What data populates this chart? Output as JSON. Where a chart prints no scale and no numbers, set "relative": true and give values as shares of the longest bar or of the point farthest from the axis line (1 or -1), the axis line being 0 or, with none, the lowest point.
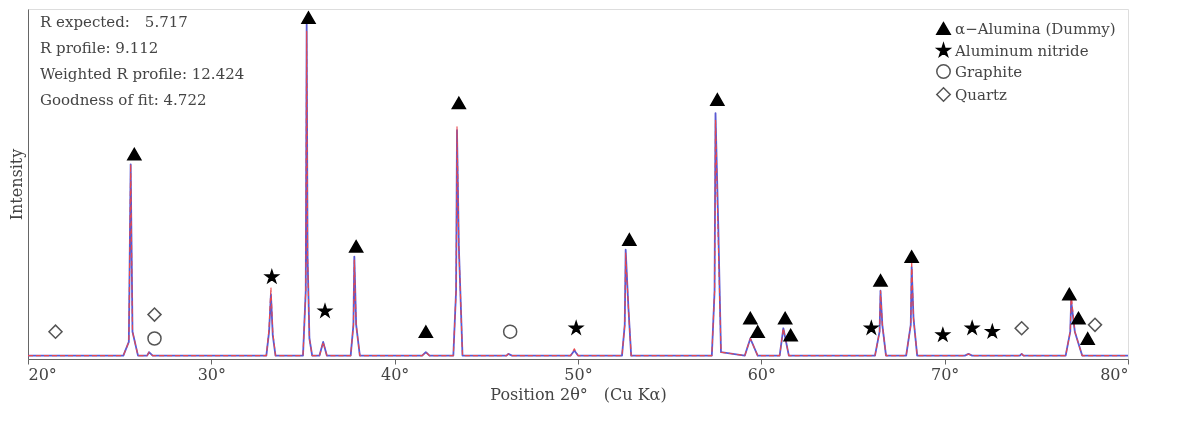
{
  "chart_data": {
    "type": "line",
    "relative": true,
    "xlabel": "Position 2θ°　(Cu Kα)",
    "ylabel": "Intensity",
    "xlim": [
      20,
      80
    ],
    "xticks": [
      {
        "value": 20,
        "label": "20°"
      },
      {
        "value": 30,
        "label": "30°"
      },
      {
        "value": 40,
        "label": "40°"
      },
      {
        "value": 50,
        "label": "50°"
      },
      {
        "value": 60,
        "label": "60°"
      },
      {
        "value": 70,
        "label": "70°"
      },
      {
        "value": 80,
        "label": "80°"
      }
    ],
    "grid": false,
    "legend": "top right",
    "annotations": [
      "R expected:　5.717",
      "R profile: 9.112",
      "Weighted R profile: 12.424",
      "Goodness of fit: 4.722"
    ],
    "x": [
      20,
      25.2,
      25.5,
      25.6,
      25.7,
      26.0,
      26.5,
      26.6,
      26.8,
      33.0,
      33.15,
      33.25,
      33.35,
      33.5,
      35.0,
      35.15,
      35.2,
      35.25,
      35.35,
      35.5,
      35.9,
      36.1,
      36.3,
      37.6,
      37.75,
      37.8,
      37.9,
      38.1,
      41.5,
      41.7,
      41.9,
      43.2,
      43.35,
      43.4,
      43.5,
      43.7,
      46.1,
      46.2,
      46.4,
      49.6,
      49.8,
      50.0,
      52.4,
      52.55,
      52.6,
      52.75,
      52.9,
      57.3,
      57.45,
      57.5,
      57.65,
      57.8,
      59.1,
      59.4,
      59.8,
      61.0,
      61.2,
      61.5,
      66.2,
      66.45,
      66.5,
      66.6,
      66.8,
      67.9,
      68.15,
      68.2,
      68.3,
      68.5,
      71.1,
      71.3,
      71.5,
      74.1,
      74.2,
      74.3,
      76.6,
      76.85,
      76.9,
      77.1,
      77.5,
      80
    ],
    "series": [
      {
        "color": "#e8484d",
        "line_style": "dashed",
        "values": [
          0.01,
          0.01,
          0.05,
          0.57,
          0.08,
          0.01,
          0.01,
          0.02,
          0.01,
          0.01,
          0.09,
          0.21,
          0.08,
          0.01,
          0.01,
          0.2,
          0.96,
          0.3,
          0.06,
          0.01,
          0.01,
          0.05,
          0.01,
          0.01,
          0.1,
          0.29,
          0.1,
          0.01,
          0.01,
          0.02,
          0.01,
          0.01,
          0.2,
          0.68,
          0.33,
          0.01,
          0.01,
          0.015,
          0.01,
          0.01,
          0.03,
          0.01,
          0.01,
          0.1,
          0.31,
          0.15,
          0.01,
          0.01,
          0.2,
          0.7,
          0.35,
          0.02,
          0.01,
          0.06,
          0.01,
          0.01,
          0.09,
          0.01,
          0.01,
          0.08,
          0.2,
          0.1,
          0.01,
          0.01,
          0.1,
          0.29,
          0.12,
          0.01,
          0.01,
          0.015,
          0.01,
          0.01,
          0.015,
          0.01,
          0.01,
          0.08,
          0.19,
          0.08,
          0.01,
          0.01
        ]
      },
      {
        "color": "#5a5ad2",
        "values": [
          0.01,
          0.01,
          0.05,
          0.57,
          0.08,
          0.01,
          0.01,
          0.02,
          0.01,
          0.01,
          0.08,
          0.19,
          0.07,
          0.01,
          0.01,
          0.2,
          0.98,
          0.3,
          0.06,
          0.01,
          0.01,
          0.05,
          0.01,
          0.01,
          0.1,
          0.3,
          0.1,
          0.01,
          0.01,
          0.02,
          0.01,
          0.01,
          0.2,
          0.67,
          0.33,
          0.01,
          0.01,
          0.015,
          0.01,
          0.01,
          0.025,
          0.01,
          0.01,
          0.1,
          0.32,
          0.15,
          0.01,
          0.01,
          0.2,
          0.72,
          0.39,
          0.02,
          0.01,
          0.06,
          0.01,
          0.01,
          0.09,
          0.01,
          0.01,
          0.08,
          0.2,
          0.1,
          0.01,
          0.01,
          0.1,
          0.27,
          0.12,
          0.01,
          0.01,
          0.015,
          0.01,
          0.01,
          0.015,
          0.01,
          0.01,
          0.08,
          0.17,
          0.08,
          0.01,
          0.01
        ]
      },
      {
        "type": "scatter",
        "name": "α−Alumina (Dummy)",
        "marker": "triangle",
        "color": "#000000",
        "x": [
          25.8,
          35.3,
          37.9,
          41.7,
          43.5,
          52.8,
          57.6,
          59.4,
          59.8,
          61.3,
          61.6,
          66.5,
          68.2,
          76.8,
          77.3,
          77.8
        ],
        "values": [
          0.6,
          1.0,
          0.33,
          0.08,
          0.75,
          0.35,
          0.76,
          0.12,
          0.08,
          0.12,
          0.07,
          0.23,
          0.3,
          0.19,
          0.12,
          0.06
        ]
      },
      {
        "type": "scatter",
        "name": "Aluminum nitride",
        "marker": "star",
        "color": "#000000",
        "x": [
          33.3,
          36.2,
          49.9,
          66.0,
          69.9,
          71.5,
          72.6
        ],
        "values": [
          0.24,
          0.14,
          0.09,
          0.09,
          0.07,
          0.09,
          0.08
        ]
      },
      {
        "type": "scatter",
        "name": "Graphite",
        "marker": "circle",
        "color": "#555555",
        "x": [
          26.9,
          46.3
        ],
        "values": [
          0.06,
          0.08
        ]
      },
      {
        "type": "scatter",
        "name": "Quartz",
        "marker": "diamond",
        "color": "#555555",
        "x": [
          21.5,
          26.9,
          74.2,
          78.2
        ],
        "values": [
          0.08,
          0.13,
          0.09,
          0.1
        ]
      }
    ]
  }
}
